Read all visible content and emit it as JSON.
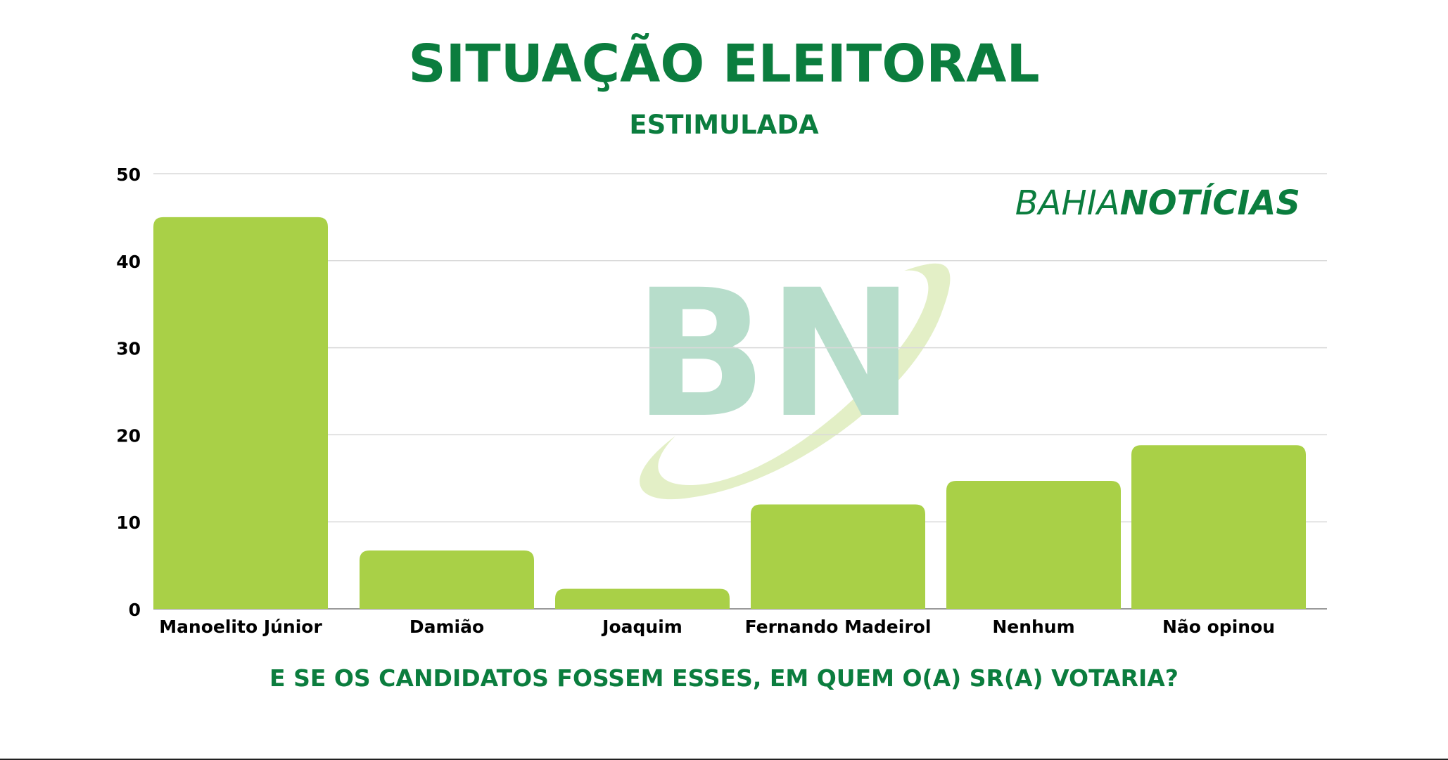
{
  "colors": {
    "title": "#0b7d3e",
    "bar": "#a9d047",
    "grid": "#d9d9d9",
    "axis_text": "#000000",
    "watermark_letters": "#b7ddcb",
    "watermark_swoosh": "#e3efc6",
    "logo": "#0b7d3e"
  },
  "logo": {
    "part1": "BAHIA",
    "part2": "NOTÍCIAS"
  },
  "watermark": {
    "text": "BN"
  },
  "chart_data": {
    "type": "bar",
    "title": "SITUAÇÃO ELEITORAL",
    "subtitle": "ESTIMULADA",
    "caption": "E SE OS CANDIDATOS FOSSEM ESSES, EM QUEM O(A) SR(A) VOTARIA?",
    "categories": [
      "Manoelito Júnior",
      "Damião",
      "Joaquim",
      "Fernando Madeirol",
      "Nenhum",
      "Não opinou"
    ],
    "values": [
      45,
      6.7,
      2.3,
      12,
      14.7,
      18.8
    ],
    "ylim": [
      0,
      50
    ],
    "yticks": [
      0,
      10,
      20,
      30,
      40,
      50
    ],
    "grid": true,
    "legend": "none"
  }
}
